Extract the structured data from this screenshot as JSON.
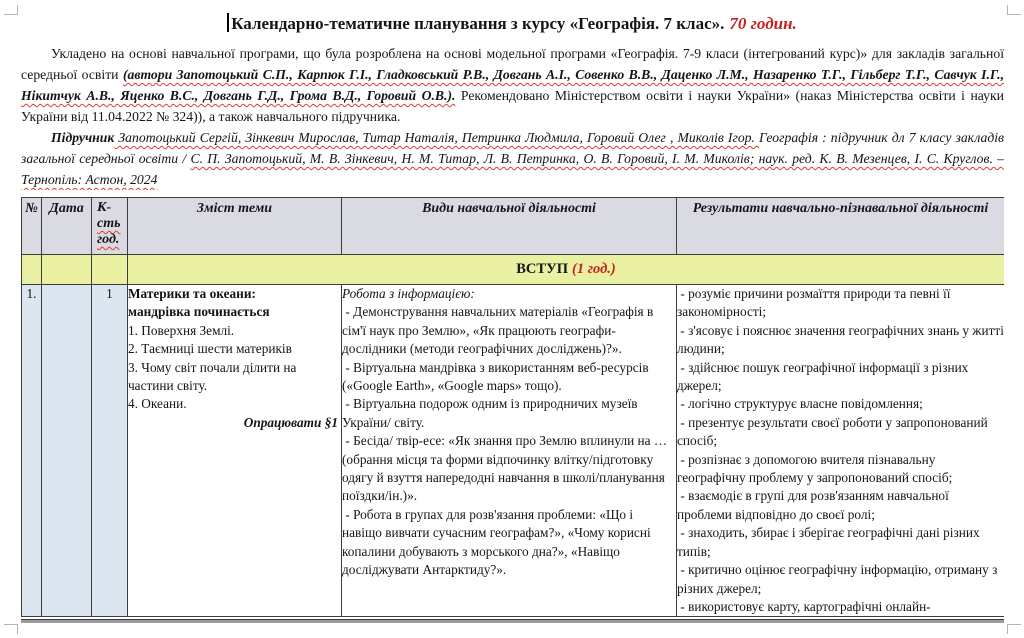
{
  "colors": {
    "accent_red": "#c32222",
    "header_fill": "#dadae3",
    "left_fill": "#dce6f1",
    "section_fill": "#eaf0a2",
    "border": "#3c3c3c",
    "page_break_gray": "#9c9c9c",
    "squiggle_red": "#e23b2e",
    "mark_gray": "#b4b4b4"
  },
  "title": {
    "main": "Календарно-тематичне планування з курсу «Географія. 7 клас».",
    "hours": "70 годин."
  },
  "intro": {
    "s1": "Укладено на основі навчальної програми, що була розроблена на основі модельної програми «Географія. 7-9 класи (інтегрований курс)» для закладів загальної середньої освіти ",
    "s2": "(автори Запотоцький С.П., Карпюк Г.І., Гладковський Р.В., Довгань А.І., Совенко В.В., Даценко Л.М., Назаренко Т.Г., Гільберг Т.Г., Савчук І.Г., Нікитчук А.В., Яценко В.С., Довгань Г.Д., Грома В.Д., Горовий О.В.).",
    "s3": " Рекомендовано Міністерством освіти і науки України» (наказ Міністерства освіти і науки України від 11.04.2022 № 324)), а також навчального підручника."
  },
  "textbook": {
    "label": "Підручник",
    "s1": " Запотоцький Сергій, Зінкевич Мирослав, Титар Наталія, Петринка Людмила, Горовий Олег , Миколів Ігор. ",
    "s2": "Географія : підручник дл 7 класу закладів загальної середньої освіти / ",
    "s3": "С. П. Запотоцький, М. В. Зінкевич, Н. М. Титар, Л. В. Петринка, О. В. Горовий, І. М. Миколів; наук. ред. К. В. Мезенцев, І. С. Круглов. – Тернопіль: Астон, 2024"
  },
  "table": {
    "headers": {
      "num": "№",
      "date": "Дата",
      "hours1": "К-",
      "hours2": "сть",
      "hours3": "год.",
      "topic": "Зміст теми",
      "activities": "Види навчальної діяльності",
      "results": "Результати навчально-пізнавальної діяльності"
    },
    "section": {
      "label": "ВСТУП",
      "hours": "(1 год.)"
    },
    "row1": {
      "num": "1.",
      "date": "",
      "hours": "1",
      "topic": {
        "heading_lines": [
          "Материки та океани:",
          "мандрівка починається"
        ],
        "items": [
          "1. Поверхня Землі.",
          "2. Таємниці шести материків",
          "3. Чому світ почали ділити на частини світу.",
          "4. Океани."
        ],
        "homework": "Опрацювати §1"
      },
      "activities": {
        "heading": "Робота з інформацією:",
        "items": [
          " - Демонстрування навчальних матеріалів «Географія в сім'ї наук про Землю», «Як працюють географи-дослідники (методи географічних досліджень)?».",
          " - Віртуальна мандрівка з використанням веб-ресурсів («Google Earth», «Google maps» тощо).",
          " - Віртуальна подорож одним із природничих музеїв України/ світу.",
          " - Бесіда/ твір-есе: «Як знання про Землю вплинули на …",
          "(обрання місця та форми відпочинку влітку/підготовку одягу й взуття напередодні навчання в школі/планування поїздки/ін.)».",
          " - Робота в групах для розв'язання проблеми: «Що і навіщо вивчати сучасним географам?», «Чому корисні копалини добувають з морського дна?», «Навіщо досліджувати Антарктиду?»."
        ]
      },
      "results": {
        "items": [
          " - розуміє причини розмаїття природи та певні її закономірності;",
          " - з'ясовує і пояснює значення географічних знань у житті людини;",
          " - здійснює пошук географічної інформації з різних джерел;",
          " - логічно структурує власне повідомлення;",
          " - презентує результати своєї роботи у запропонований спосіб;",
          " - розпізнає з допомогою вчителя пізнавальну географічну проблему у запропонований спосіб;",
          " - взаємодіє в групі для розв'язанням навчальної проблеми відповідно до своєї ролі;",
          " - знаходить, збирає і зберігає географічні дані різних типів;",
          " - критично оцінює географічну інформацію, отриману з різних джерел;",
          " - використовує карту, картографічні онлайн-"
        ]
      }
    }
  }
}
